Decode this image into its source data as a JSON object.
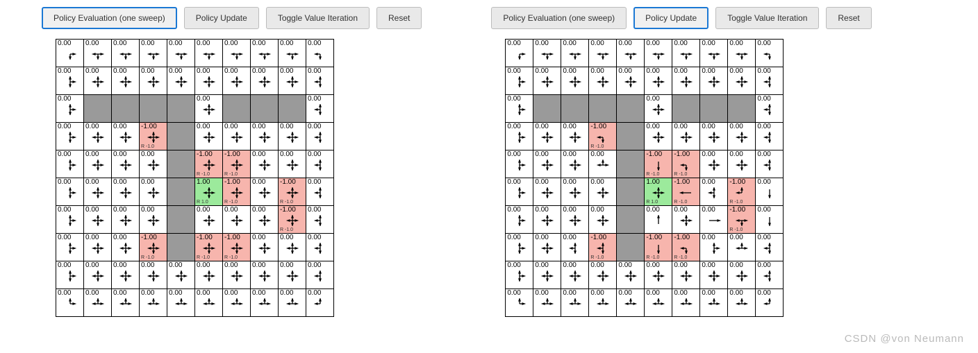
{
  "arrowStroke": "#000",
  "colors": {
    "wall": "#9a9a9a",
    "neg": "#f7b5ad",
    "pos": "#9cea9c",
    "btnBorderActive": "#1b78d4"
  },
  "watermark": "CSDN @von  Neumann",
  "buttons": [
    {
      "key": "eval",
      "label": "Policy Evaluation (one sweep)"
    },
    {
      "key": "update",
      "label": "Policy Update"
    },
    {
      "key": "toggle",
      "label": "Toggle Value Iteration"
    },
    {
      "key": "reset",
      "label": "Reset"
    }
  ],
  "panels": [
    {
      "id": "left",
      "activeButton": "eval",
      "rows": 10,
      "cols": 10,
      "cells": [
        [
          [
            "0.00",
            "dr"
          ],
          [
            "0.00",
            "d3"
          ],
          [
            "0.00",
            "d3"
          ],
          [
            "0.00",
            "d3"
          ],
          [
            "0.00",
            "d3"
          ],
          [
            "0.00",
            "d3"
          ],
          [
            "0.00",
            "d3"
          ],
          [
            "0.00",
            "d3"
          ],
          [
            "0.00",
            "d3"
          ],
          [
            "0.00",
            "dl"
          ]
        ],
        [
          [
            "0.00",
            "r3"
          ],
          [
            "0.00",
            "a4"
          ],
          [
            "0.00",
            "a4"
          ],
          [
            "0.00",
            "a4"
          ],
          [
            "0.00",
            "a4"
          ],
          [
            "0.00",
            "a4"
          ],
          [
            "0.00",
            "a4"
          ],
          [
            "0.00",
            "a4"
          ],
          [
            "0.00",
            "a4"
          ],
          [
            "0.00",
            "l3"
          ]
        ],
        [
          [
            "0.00",
            "r3"
          ],
          null,
          null,
          null,
          null,
          [
            "0.00",
            "a4"
          ],
          null,
          null,
          null,
          [
            "0.00",
            "l3"
          ]
        ],
        [
          [
            "0.00",
            "r3"
          ],
          [
            "0.00",
            "a4"
          ],
          [
            "0.00",
            "a4"
          ],
          [
            "-1.00",
            "a4",
            "R -1.0"
          ],
          null,
          [
            "0.00",
            "a4"
          ],
          [
            "0.00",
            "a4"
          ],
          [
            "0.00",
            "a4"
          ],
          [
            "0.00",
            "a4"
          ],
          [
            "0.00",
            "l3"
          ]
        ],
        [
          [
            "0.00",
            "r3"
          ],
          [
            "0.00",
            "a4"
          ],
          [
            "0.00",
            "a4"
          ],
          [
            "0.00",
            "a4"
          ],
          null,
          [
            "-1.00",
            "a4",
            "R -1.0"
          ],
          [
            "-1.00",
            "a4",
            "R -1.0"
          ],
          [
            "0.00",
            "a4"
          ],
          [
            "0.00",
            "a4"
          ],
          [
            "0.00",
            "l3"
          ]
        ],
        [
          [
            "0.00",
            "r3"
          ],
          [
            "0.00",
            "a4"
          ],
          [
            "0.00",
            "a4"
          ],
          [
            "0.00",
            "a4"
          ],
          null,
          [
            "1.00",
            "a4",
            "R 1.0",
            "pos"
          ],
          [
            "-1.00",
            "a4",
            "R -1.0"
          ],
          [
            "0.00",
            "a4"
          ],
          [
            "-1.00",
            "a4",
            "R -1.0"
          ],
          [
            "0.00",
            "l3"
          ]
        ],
        [
          [
            "0.00",
            "r3"
          ],
          [
            "0.00",
            "a4"
          ],
          [
            "0.00",
            "a4"
          ],
          [
            "0.00",
            "a4"
          ],
          null,
          [
            "0.00",
            "a4"
          ],
          [
            "0.00",
            "a4"
          ],
          [
            "0.00",
            "a4"
          ],
          [
            "-1.00",
            "a4",
            "R -1.0"
          ],
          [
            "0.00",
            "l3"
          ]
        ],
        [
          [
            "0.00",
            "r3"
          ],
          [
            "0.00",
            "a4"
          ],
          [
            "0.00",
            "a4"
          ],
          [
            "-1.00",
            "a4",
            "R -1.0"
          ],
          null,
          [
            "-1.00",
            "a4",
            "R -1.0"
          ],
          [
            "-1.00",
            "a4",
            "R -1.0"
          ],
          [
            "0.00",
            "a4"
          ],
          [
            "0.00",
            "a4"
          ],
          [
            "0.00",
            "l3"
          ]
        ],
        [
          [
            "0.00",
            "r3"
          ],
          [
            "0.00",
            "a4"
          ],
          [
            "0.00",
            "a4"
          ],
          [
            "0.00",
            "a4"
          ],
          [
            "0.00",
            "a4"
          ],
          [
            "0.00",
            "a4"
          ],
          [
            "0.00",
            "a4"
          ],
          [
            "0.00",
            "a4"
          ],
          [
            "0.00",
            "a4"
          ],
          [
            "0.00",
            "l3"
          ]
        ],
        [
          [
            "0.00",
            "ur"
          ],
          [
            "0.00",
            "u3"
          ],
          [
            "0.00",
            "u3"
          ],
          [
            "0.00",
            "u3"
          ],
          [
            "0.00",
            "u3"
          ],
          [
            "0.00",
            "u3"
          ],
          [
            "0.00",
            "u3"
          ],
          [
            "0.00",
            "u3"
          ],
          [
            "0.00",
            "u3"
          ],
          [
            "0.00",
            "ul"
          ]
        ]
      ]
    },
    {
      "id": "right",
      "activeButton": "update",
      "rows": 10,
      "cols": 10,
      "cells": [
        [
          [
            "0.00",
            "dr"
          ],
          [
            "0.00",
            "d3"
          ],
          [
            "0.00",
            "d3"
          ],
          [
            "0.00",
            "d3"
          ],
          [
            "0.00",
            "d3"
          ],
          [
            "0.00",
            "d3"
          ],
          [
            "0.00",
            "d3"
          ],
          [
            "0.00",
            "d3"
          ],
          [
            "0.00",
            "d3"
          ],
          [
            "0.00",
            "dl"
          ]
        ],
        [
          [
            "0.00",
            "r3"
          ],
          [
            "0.00",
            "a4"
          ],
          [
            "0.00",
            "a4"
          ],
          [
            "0.00",
            "a4"
          ],
          [
            "0.00",
            "a4"
          ],
          [
            "0.00",
            "a4"
          ],
          [
            "0.00",
            "a4"
          ],
          [
            "0.00",
            "a4"
          ],
          [
            "0.00",
            "a4"
          ],
          [
            "0.00",
            "l3"
          ]
        ],
        [
          [
            "0.00",
            "r3"
          ],
          null,
          null,
          null,
          null,
          [
            "0.00",
            "a4"
          ],
          null,
          null,
          null,
          [
            "0.00",
            "l3"
          ]
        ],
        [
          [
            "0.00",
            "r3"
          ],
          [
            "0.00",
            "a4"
          ],
          [
            "0.00",
            "a4"
          ],
          [
            "-1.00",
            "dl",
            "R -1.0"
          ],
          null,
          [
            "0.00",
            "a4"
          ],
          [
            "0.00",
            "a4"
          ],
          [
            "0.00",
            "a4"
          ],
          [
            "0.00",
            "a4"
          ],
          [
            "0.00",
            "l3"
          ]
        ],
        [
          [
            "0.00",
            "r3"
          ],
          [
            "0.00",
            "a4"
          ],
          [
            "0.00",
            "a4"
          ],
          [
            "0.00",
            "u3"
          ],
          null,
          [
            "-1.00",
            "D",
            "R -1.0"
          ],
          [
            "-1.00",
            "dl",
            "R -1.0"
          ],
          [
            "0.00",
            "a4"
          ],
          [
            "0.00",
            "a4"
          ],
          [
            "0.00",
            "l3"
          ]
        ],
        [
          [
            "0.00",
            "r3"
          ],
          [
            "0.00",
            "a4"
          ],
          [
            "0.00",
            "a4"
          ],
          [
            "0.00",
            "a4"
          ],
          null,
          [
            "1.00",
            "a4",
            "R 1.0",
            "pos"
          ],
          [
            "-1.00",
            "L",
            "R -1.0"
          ],
          [
            "0.00",
            "l3"
          ],
          [
            "-1.00",
            "ul",
            "R -1.0"
          ],
          [
            "0.00",
            "D"
          ]
        ],
        [
          [
            "0.00",
            "r3"
          ],
          [
            "0.00",
            "a4"
          ],
          [
            "0.00",
            "a4"
          ],
          [
            "0.00",
            "a4"
          ],
          null,
          [
            "0.00",
            "U"
          ],
          [
            "0.00",
            "a4"
          ],
          [
            "0.00",
            "R"
          ],
          [
            "-1.00",
            "d3",
            "R -1.0"
          ],
          [
            "0.00",
            "D"
          ]
        ],
        [
          [
            "0.00",
            "r3"
          ],
          [
            "0.00",
            "a4"
          ],
          [
            "0.00",
            "l3"
          ],
          [
            "-1.00",
            "l3",
            "R -1.0"
          ],
          null,
          [
            "-1.00",
            "D",
            "R -1.0"
          ],
          [
            "-1.00",
            "dl",
            "R -1.0"
          ],
          [
            "0.00",
            "r3"
          ],
          [
            "0.00",
            "u3"
          ],
          [
            "0.00",
            "l3"
          ]
        ],
        [
          [
            "0.00",
            "r3"
          ],
          [
            "0.00",
            "a4"
          ],
          [
            "0.00",
            "a4"
          ],
          [
            "0.00",
            "a4"
          ],
          [
            "0.00",
            "a4"
          ],
          [
            "0.00",
            "a4"
          ],
          [
            "0.00",
            "a4"
          ],
          [
            "0.00",
            "a4"
          ],
          [
            "0.00",
            "a4"
          ],
          [
            "0.00",
            "l3"
          ]
        ],
        [
          [
            "0.00",
            "ur"
          ],
          [
            "0.00",
            "u3"
          ],
          [
            "0.00",
            "u3"
          ],
          [
            "0.00",
            "u3"
          ],
          [
            "0.00",
            "u3"
          ],
          [
            "0.00",
            "u3"
          ],
          [
            "0.00",
            "u3"
          ],
          [
            "0.00",
            "u3"
          ],
          [
            "0.00",
            "u3"
          ],
          [
            "0.00",
            "ul"
          ]
        ]
      ]
    }
  ]
}
